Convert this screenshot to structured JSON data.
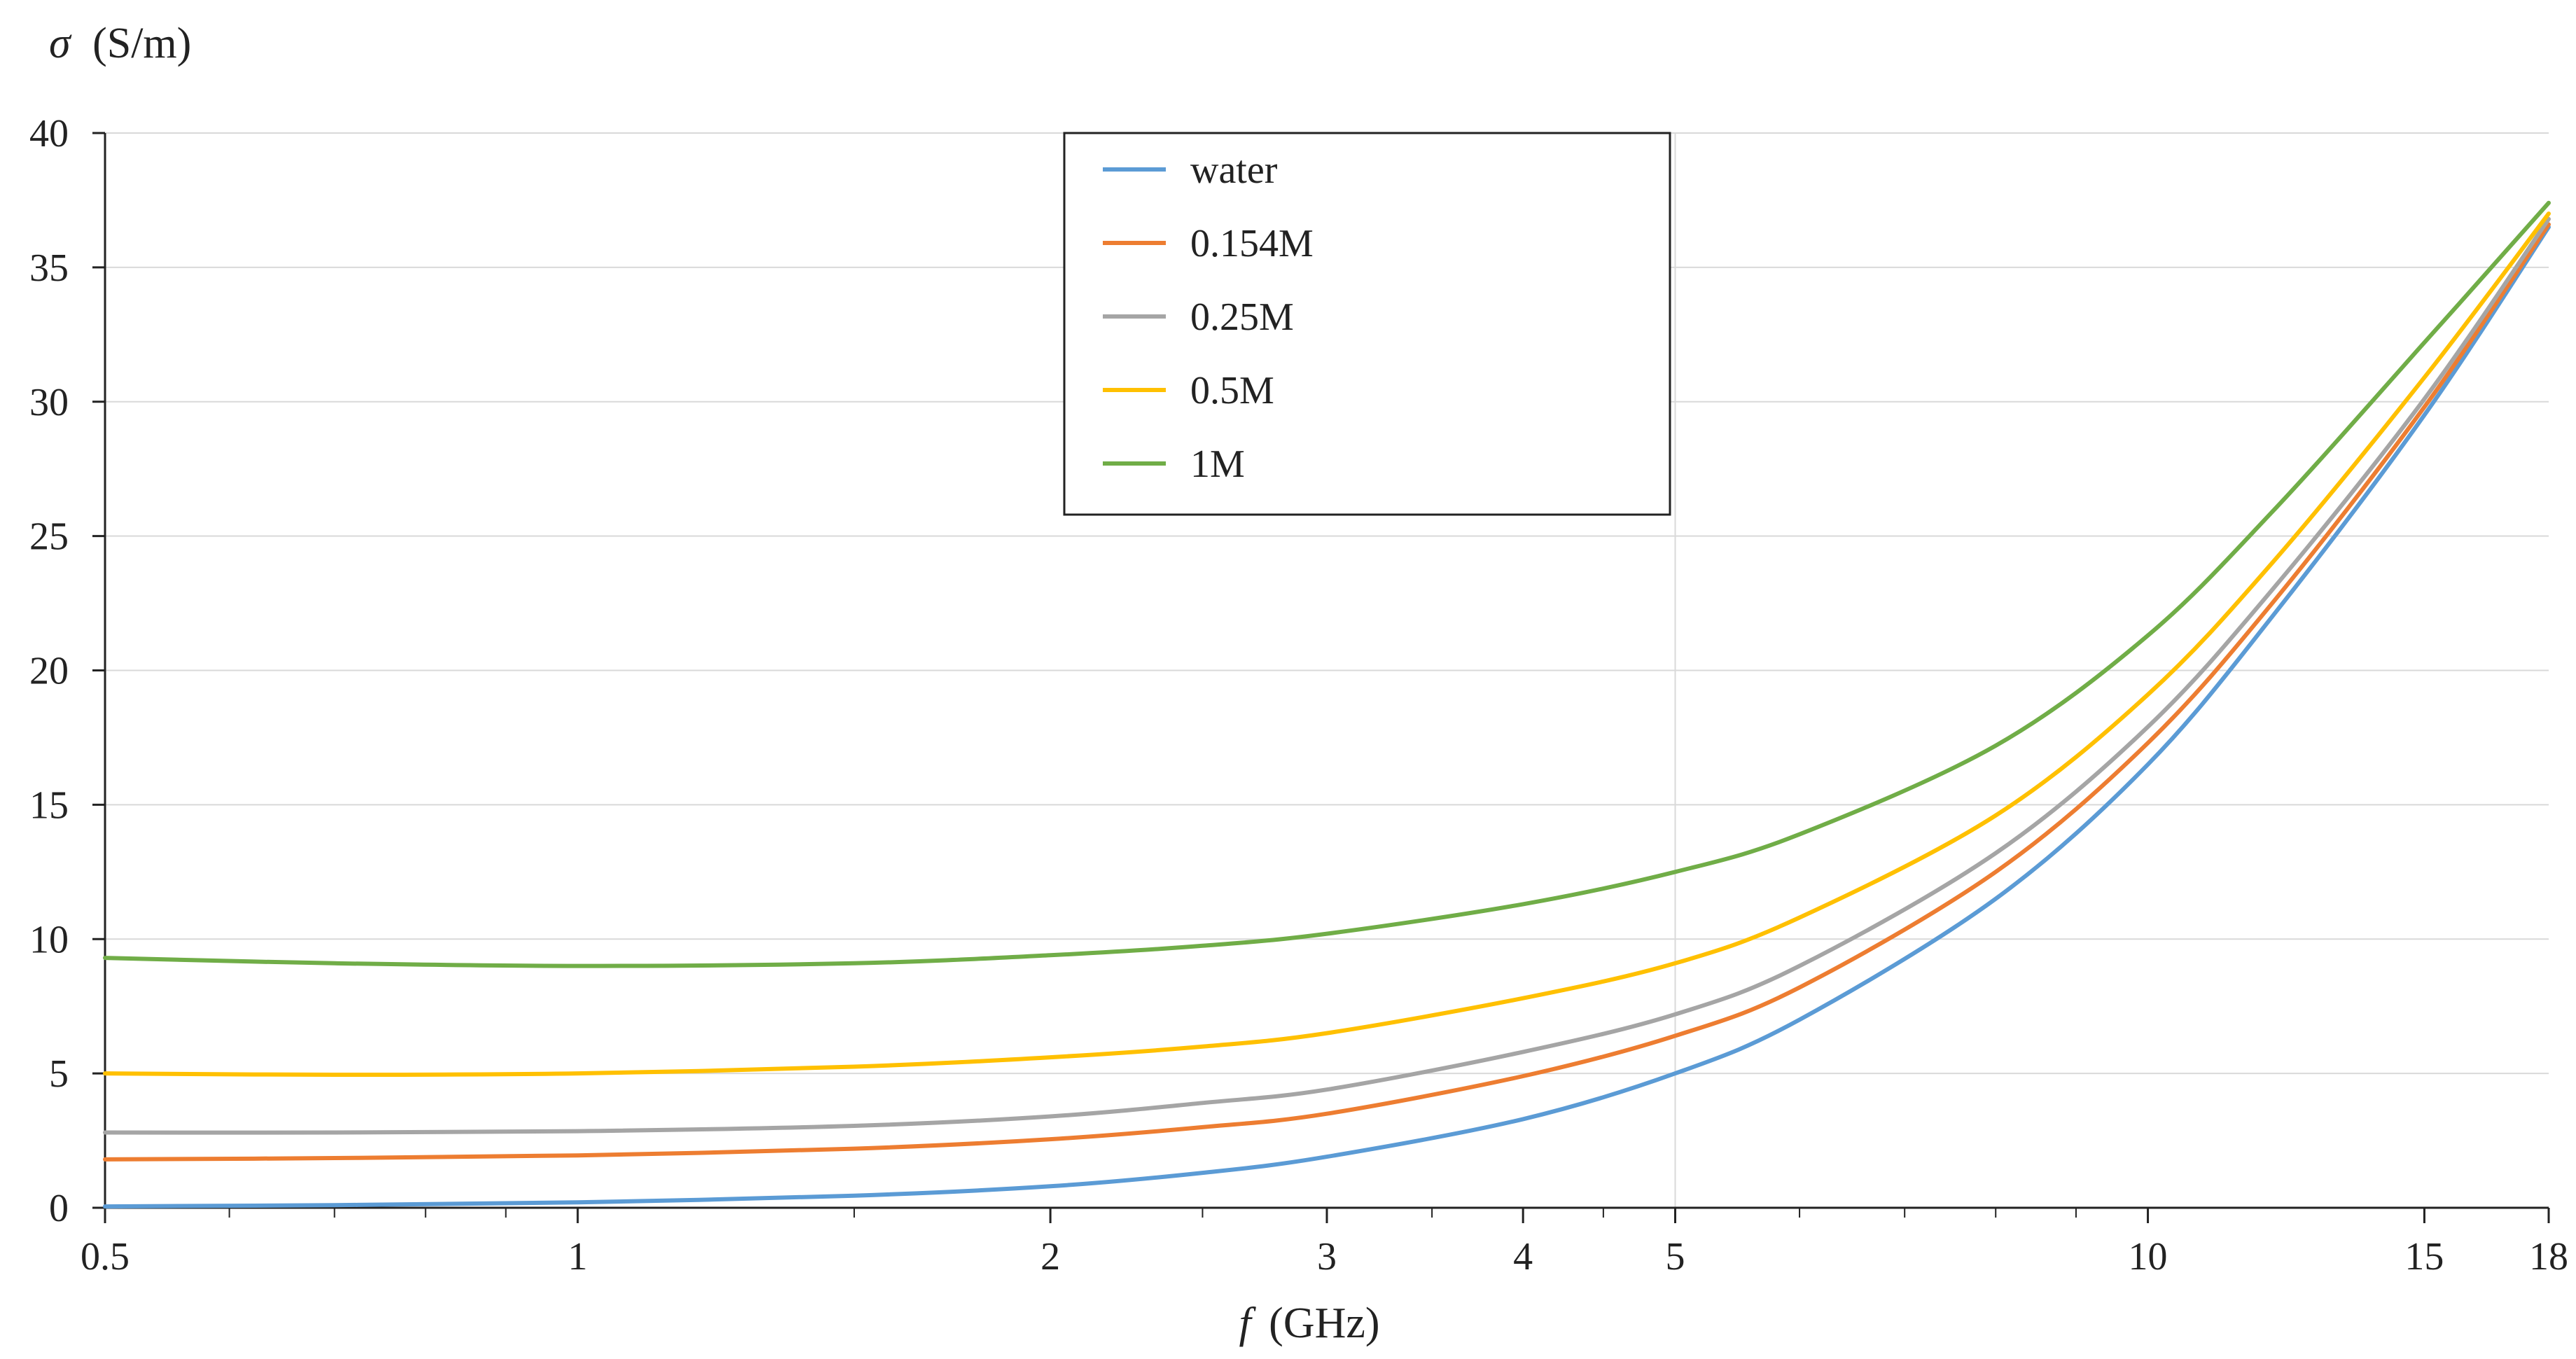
{
  "chart_data": {
    "type": "line",
    "x_scale": "log",
    "xlim": [
      0.5,
      18
    ],
    "ylim": [
      0,
      40
    ],
    "grid": true,
    "legend_position": "top-center",
    "y_ticks": [
      0,
      5,
      10,
      15,
      20,
      25,
      30,
      35,
      40
    ],
    "x_tick_labels": [
      "0.5",
      "1",
      "2",
      "3",
      "4",
      "5",
      "10",
      "15",
      "18"
    ],
    "x_tick_values": [
      0.5,
      1,
      2,
      3,
      4,
      5,
      10,
      15,
      18
    ],
    "x_minor_ticks": [
      0.6,
      0.7,
      0.8,
      0.9,
      1.5,
      2.5,
      3.5,
      4.5,
      6,
      7,
      8,
      9
    ],
    "ylabel_symbol": "σ",
    "ylabel_unit": "(S/m)",
    "xlabel_symbol": "f",
    "xlabel_unit": "(GHz)",
    "x": [
      0.5,
      0.7,
      1,
      1.5,
      2,
      2.5,
      3,
      4,
      5,
      6,
      8,
      10,
      12,
      15,
      18
    ],
    "series": [
      {
        "name": "water",
        "color": "#5B9BD5",
        "values": [
          0.05,
          0.1,
          0.2,
          0.45,
          0.8,
          1.3,
          1.9,
          3.3,
          5.0,
          7.0,
          11.5,
          16.5,
          22.0,
          29.5,
          36.5
        ]
      },
      {
        "name": "0.154M",
        "color": "#ED7D31",
        "values": [
          1.8,
          1.85,
          1.95,
          2.2,
          2.55,
          3.0,
          3.5,
          4.9,
          6.4,
          8.2,
          12.5,
          17.3,
          22.5,
          29.8,
          36.6
        ]
      },
      {
        "name": "0.25M",
        "color": "#A5A5A5",
        "values": [
          2.8,
          2.8,
          2.85,
          3.05,
          3.4,
          3.9,
          4.4,
          5.8,
          7.2,
          9.0,
          13.2,
          17.9,
          23.0,
          30.1,
          36.8
        ]
      },
      {
        "name": "0.5M",
        "color": "#FFC000",
        "values": [
          5.0,
          4.95,
          5.0,
          5.25,
          5.6,
          6.0,
          6.5,
          7.8,
          9.1,
          10.8,
          14.6,
          19.1,
          24.0,
          30.9,
          37.0
        ]
      },
      {
        "name": "1M",
        "color": "#70AD47",
        "values": [
          9.3,
          9.1,
          9.0,
          9.1,
          9.4,
          9.75,
          10.2,
          11.3,
          12.5,
          13.9,
          17.2,
          21.3,
          25.9,
          32.2,
          37.4
        ]
      }
    ]
  }
}
